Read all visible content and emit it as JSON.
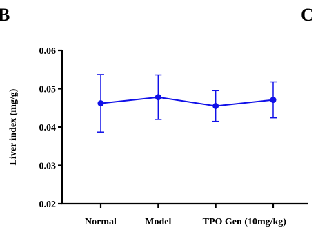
{
  "panel_labels": {
    "left": "B",
    "right": "C"
  },
  "chart_data": {
    "type": "line",
    "title": "",
    "xlabel": "",
    "ylabel": "Liver index (mg/g)",
    "categories": [
      "Normal",
      "Model",
      "TPO Gen (10mg/kg)"
    ],
    "ylim": [
      0.02,
      0.06
    ],
    "yticks": [
      "0.02",
      "0.03",
      "0.04",
      "0.05",
      "0.06"
    ],
    "grid": false,
    "legend": "none",
    "series": [
      {
        "color": "#1010e8",
        "x": [
          1,
          2,
          3,
          4
        ],
        "values": [
          0.0462,
          0.0478,
          0.0455,
          0.0471
        ],
        "error": [
          0.0075,
          0.0058,
          0.004,
          0.0047
        ]
      }
    ],
    "category_positions": [
      1,
      2,
      3,
      4
    ],
    "category_label_positions": [
      1,
      2,
      3.5
    ]
  }
}
